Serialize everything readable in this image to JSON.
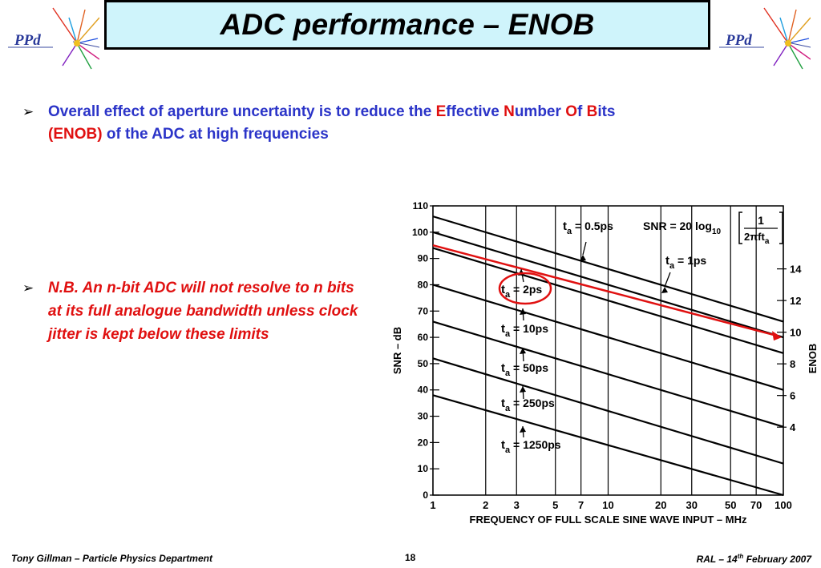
{
  "logo": {
    "text": "PPd"
  },
  "title": "ADC performance – ENOB",
  "bullet1": {
    "p1": "Overall effect of aperture uncertainty is to reduce the ",
    "E": "E",
    "ffective": "ffective ",
    "N": "N",
    "umber": "umber ",
    "O": "O",
    "f": "f ",
    "B": "B",
    "its": "its",
    "enob": "(ENOB)",
    "p2": " of the ADC at high frequencies"
  },
  "bullet2": "N.B. An n-bit ADC will not resolve to n bits at its full analogue bandwidth unless clock jitter is kept below these limits",
  "footer": {
    "left": "Tony Gillman – Particle Physics Department",
    "page": "18",
    "right_a": "RAL – 14",
    "right_sup": "th",
    "right_b": " February 2007"
  },
  "colors": {
    "title_bg": "#cff4fb",
    "bullet_blue": "#2b34c8",
    "accent_red": "#e01010"
  },
  "chart_data": {
    "type": "line",
    "xscale": "log",
    "xlabel": "FREQUENCY OF FULL SCALE SINE WAVE INPUT – MHz",
    "ylabel": "SNR – dB",
    "y2label": "ENOB",
    "xlim": [
      1,
      100
    ],
    "ylim": [
      0,
      110
    ],
    "xticks": [
      "1",
      "2",
      "3",
      "5",
      "7",
      "10",
      "20",
      "30",
      "50",
      "70",
      "100"
    ],
    "xtick_values": [
      1,
      2,
      3,
      5,
      7,
      10,
      20,
      30,
      50,
      70,
      100
    ],
    "yticks": [
      "0",
      "10",
      "20",
      "30",
      "40",
      "50",
      "60",
      "70",
      "80",
      "90",
      "100",
      "110"
    ],
    "ytick_values": [
      0,
      10,
      20,
      30,
      40,
      50,
      60,
      70,
      80,
      90,
      100,
      110
    ],
    "y2ticks": [
      "4",
      "6",
      "8",
      "10",
      "12",
      "14"
    ],
    "y2tick_values": [
      4,
      6,
      8,
      10,
      12,
      14
    ],
    "formula": {
      "lhs": "SNR = 20 log",
      "sub": "10",
      "num": "1",
      "den": "2πft",
      "den_sub": "a"
    },
    "grid": true,
    "series": [
      {
        "name": "t = 0.5ps",
        "label_main": "t",
        "label_sub": "a",
        "label_rest": " = 0.5ps",
        "values_at_1MHz_and_100MHz": [
          106,
          66
        ]
      },
      {
        "name": "t = 1ps",
        "label_main": "t",
        "label_sub": "a",
        "label_rest": " = 1ps",
        "values_at_1MHz_and_100MHz": [
          100,
          60
        ]
      },
      {
        "name": "t = 2ps",
        "label_main": "t",
        "label_sub": "a",
        "label_rest": " = 2ps",
        "values_at_1MHz_and_100MHz": [
          94,
          54
        ]
      },
      {
        "name": "t = 10ps",
        "label_main": "t",
        "label_sub": "a",
        "label_rest": " = 10ps",
        "values_at_1MHz_and_100MHz": [
          80,
          40
        ]
      },
      {
        "name": "t = 50ps",
        "label_main": "t",
        "label_sub": "a",
        "label_rest": " = 50ps",
        "values_at_1MHz_and_100MHz": [
          66,
          26
        ]
      },
      {
        "name": "t = 250ps",
        "label_main": "t",
        "label_sub": "a",
        "label_rest": " = 250ps",
        "values_at_1MHz_and_100MHz": [
          52,
          12
        ]
      },
      {
        "name": "t = 1250ps",
        "label_main": "t",
        "label_sub": "a",
        "label_rest": " = 1250ps",
        "values_at_1MHz_and_100MHz": [
          38,
          0
        ]
      }
    ],
    "annotation_arrow": {
      "from": [
        1,
        95
      ],
      "to": [
        100,
        60
      ],
      "color": "#e01010"
    },
    "highlight": "t = 2ps"
  }
}
